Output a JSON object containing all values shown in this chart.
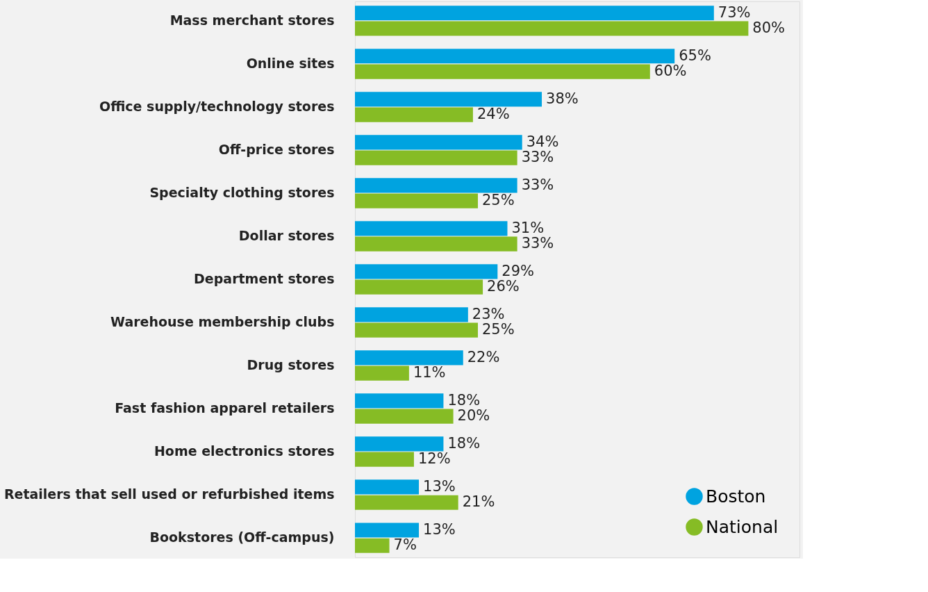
{
  "chart_data": {
    "type": "bar",
    "orientation": "horizontal",
    "categories": [
      "Mass merchant stores",
      "Online sites",
      "Office supply/technology stores",
      "Off-price stores",
      "Specialty clothing stores",
      "Dollar stores",
      "Department stores",
      "Warehouse membership clubs",
      "Drug stores",
      "Fast fashion apparel retailers",
      "Home electronics stores",
      "Retailers that sell used or refurbished items",
      "Bookstores (Off-campus)"
    ],
    "series": [
      {
        "name": "Boston",
        "color": "#00a3e0",
        "values": [
          73,
          65,
          38,
          34,
          33,
          31,
          29,
          23,
          22,
          18,
          18,
          13,
          13
        ],
        "value_labels": [
          "73%",
          "65%",
          "38%",
          "34%",
          "33%",
          "31%",
          "29%",
          "23%",
          "22%",
          "18%",
          "18%",
          "13%",
          "13%"
        ]
      },
      {
        "name": "National",
        "color": "#86bc25",
        "values": [
          80,
          60,
          24,
          33,
          25,
          33,
          26,
          25,
          11,
          20,
          12,
          21,
          7
        ],
        "value_labels": [
          "80%",
          "60%",
          "24%",
          "33%",
          "25%",
          "33%",
          "26%",
          "25%",
          "11%",
          "20%",
          "12%",
          "21%",
          "7%"
        ]
      }
    ],
    "legend": "bottom right",
    "marker": "circle"
  }
}
